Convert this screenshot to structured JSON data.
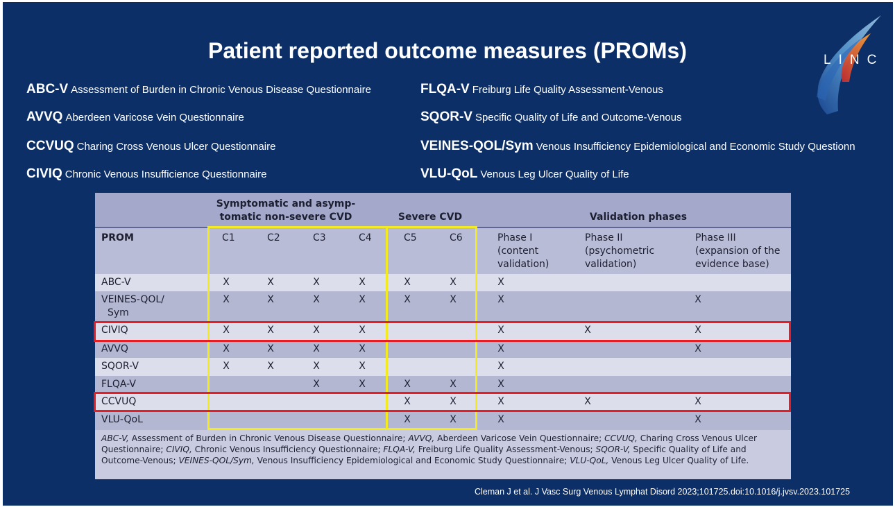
{
  "title": "Patient reported outcome measures (PROMs)",
  "logo": {
    "text": "LINC"
  },
  "abbreviations": {
    "left": [
      {
        "abbr": "ABC-V",
        "full": "Assessment of Burden in Chronic Venous Disease Questionnaire"
      },
      {
        "abbr": "AVVQ",
        "full": "Aberdeen Varicose Vein Questionnaire"
      },
      {
        "abbr": "CCVUQ",
        "full": "Charing Cross Venous Ulcer Questionnaire"
      },
      {
        "abbr": "CIVIQ",
        "full": "Chronic Venous Insufficience Questionnaire"
      }
    ],
    "right": [
      {
        "abbr": "FLQA-V",
        "full": "Freiburg Life Quality Assessment-Venous"
      },
      {
        "abbr": "SQOR-V",
        "full": "Specific Quality of Life and Outcome-Venous"
      },
      {
        "abbr": "VEINES-QOL/Sym",
        "full": "Venous Insufficiency Epidemiological and Economic Study Questionn"
      },
      {
        "abbr": "VLU-QoL",
        "full": "Venous Leg Ulcer Quality of Life"
      }
    ]
  },
  "table": {
    "groups": {
      "symptomatic_line1": "Symptomatic and asymp-",
      "symptomatic_line2": "tomatic non-severe CVD",
      "severe": "Severe CVD",
      "validation": "Validation phases"
    },
    "columns": {
      "prom": "PROM",
      "c1": "C1",
      "c2": "C2",
      "c3": "C3",
      "c4": "C4",
      "c5": "C5",
      "c6": "C6",
      "phase1": [
        "Phase I",
        "(content",
        "validation)"
      ],
      "phase2": [
        "Phase II",
        "(psychometric",
        "validation)"
      ],
      "phase3": [
        "Phase III",
        "(expansion of the",
        "evidence base)"
      ]
    },
    "mark_symbol": "X",
    "rows": [
      {
        "name": [
          "ABC-V"
        ],
        "marks": [
          1,
          1,
          1,
          1,
          1,
          1,
          1,
          0,
          0
        ],
        "highlight": false
      },
      {
        "name": [
          "VEINES-QOL/",
          "Sym"
        ],
        "marks": [
          1,
          1,
          1,
          1,
          1,
          1,
          1,
          0,
          1
        ],
        "highlight": false
      },
      {
        "name": [
          "CIVIQ"
        ],
        "marks": [
          1,
          1,
          1,
          1,
          0,
          0,
          1,
          1,
          1
        ],
        "highlight": true
      },
      {
        "name": [
          "AVVQ"
        ],
        "marks": [
          1,
          1,
          1,
          1,
          0,
          0,
          1,
          0,
          1
        ],
        "highlight": false
      },
      {
        "name": [
          "SQOR-V"
        ],
        "marks": [
          1,
          1,
          1,
          1,
          0,
          0,
          1,
          0,
          0
        ],
        "highlight": false
      },
      {
        "name": [
          "FLQA-V"
        ],
        "marks": [
          0,
          0,
          1,
          1,
          1,
          1,
          1,
          0,
          0
        ],
        "highlight": false
      },
      {
        "name": [
          "CCVUQ"
        ],
        "marks": [
          0,
          0,
          0,
          0,
          1,
          1,
          1,
          1,
          1
        ],
        "highlight": true
      },
      {
        "name": [
          "VLU-QoL"
        ],
        "marks": [
          0,
          0,
          0,
          0,
          1,
          1,
          1,
          0,
          1
        ],
        "highlight": false
      }
    ],
    "footnote": [
      {
        "i": "ABC-V,",
        "t": " Assessment of Burden in Chronic Venous Disease Questionnaire; "
      },
      {
        "i": "AVVQ,",
        "t": " Aberdeen Varicose Vein Questionnaire; "
      },
      {
        "i": "CCVUQ,",
        "t": " Charing Cross Venous Ulcer Questionnaire; "
      },
      {
        "i": "CIVIQ,",
        "t": " Chronic Venous Insufficiency Questionnaire; "
      },
      {
        "i": "FLQA-V,",
        "t": " Freiburg Life Quality Assessment-Venous; "
      },
      {
        "i": "SQOR-V,",
        "t": " Specific Quality of Life and Outcome-Venous; "
      },
      {
        "i": "VEINES-QOL/Sym,",
        "t": " Venous Insufficiency Epidemiological and Economic Study Questionnaire; "
      },
      {
        "i": "VLU-QoL,",
        "t": " Venous Leg Ulcer Quality of Life."
      }
    ]
  },
  "citation": "Cleman J et al. J Vasc Surg Venous Lymphat Disord 2023;101725.doi:10.1016/j.jvsv.2023.101725",
  "colors": {
    "background": "#0c2f67",
    "highlight_box": "#e51d25",
    "group_box": "#f3ea21"
  }
}
